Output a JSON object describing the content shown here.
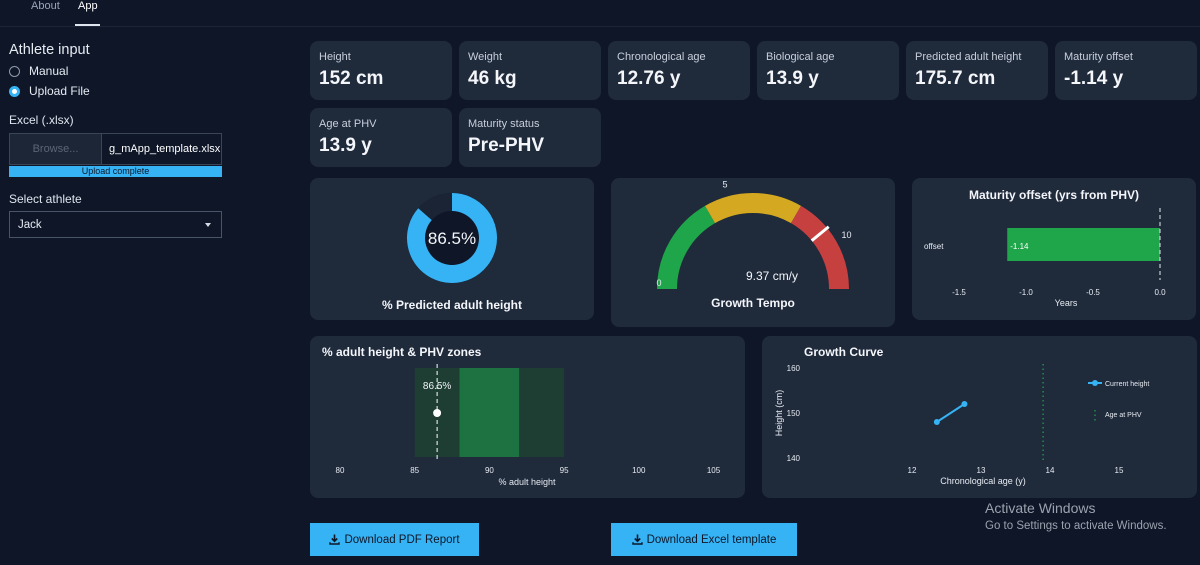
{
  "nav": {
    "tabs": [
      {
        "label": "About"
      },
      {
        "label": "App"
      }
    ]
  },
  "sidebar": {
    "title": "Athlete input",
    "mode_options": [
      "Manual",
      "Upload File"
    ],
    "selected_mode": "Upload File",
    "excel_label": "Excel (.xlsx)",
    "browse_label": "Browse...",
    "file_name": "g_mApp_template.xlsx",
    "upload_status": "Upload complete",
    "upload_progress_pct": 100,
    "select_label": "Select athlete",
    "selected_athlete": "Jack"
  },
  "metrics": [
    {
      "label": "Height",
      "value": "152 cm"
    },
    {
      "label": "Weight",
      "value": "46 kg"
    },
    {
      "label": "Chronological age",
      "value": "12.76 y"
    },
    {
      "label": "Biological age",
      "value": "13.9 y"
    },
    {
      "label": "Predicted adult height",
      "value": "175.7 cm"
    },
    {
      "label": "Maturity offset",
      "value": "-1.14 y"
    },
    {
      "label": "Age at PHV",
      "value": "13.9 y"
    },
    {
      "label": "Maturity status",
      "value": "Pre-PHV"
    }
  ],
  "colors": {
    "accent": "#36b3f4",
    "green": "#1fa54a",
    "yellow": "#d4a820",
    "red": "#c64040",
    "card": "#1f2a3b",
    "background": "#0e1628"
  },
  "chart_data": [
    {
      "type": "pie",
      "title": "% Predicted adult height",
      "center_label": "86.5%",
      "values": [
        86.5,
        13.5
      ]
    },
    {
      "type": "gauge",
      "title": "Growth Tempo",
      "value": 9.37,
      "value_label": "9.37 cm/y",
      "range": [
        0,
        12
      ],
      "tick_labels": [
        "0",
        "5",
        "10"
      ],
      "bands": [
        {
          "from": 0,
          "to": 4,
          "color": "#1fa54a"
        },
        {
          "from": 4,
          "to": 8,
          "color": "#d4a820"
        },
        {
          "from": 8,
          "to": 12,
          "color": "#c64040"
        }
      ]
    },
    {
      "type": "bar",
      "orientation": "horizontal",
      "title": "Maturity offset (yrs from PHV)",
      "categories": [
        "offset"
      ],
      "values": [
        -1.14
      ],
      "data_label": "-1.14",
      "xlabel": "Years",
      "xlim": [
        -1.5,
        0.0
      ],
      "xticks": [
        "-1.5",
        "-1.0",
        "-0.5",
        "0.0"
      ],
      "reference_line": 0
    },
    {
      "type": "scatter",
      "title": "% adult height & PHV zones",
      "xlabel": "% adult height",
      "xlim": [
        80,
        105
      ],
      "xticks": [
        "80",
        "85",
        "90",
        "95",
        "100",
        "105"
      ],
      "zones": [
        {
          "from": 85,
          "to": 88,
          "color": "#1e3d33"
        },
        {
          "from": 88,
          "to": 92,
          "color": "#1e7140"
        },
        {
          "from": 92,
          "to": 95,
          "color": "#1e3d33"
        }
      ],
      "value": 86.5,
      "value_label": "86.5%"
    },
    {
      "type": "line",
      "title": "Growth Curve",
      "xlabel": "Chronological age (y)",
      "ylabel": "Height (cm)",
      "xlim": [
        11.6,
        15
      ],
      "ylim": [
        138.5,
        161.5
      ],
      "xticks": [
        "12",
        "13",
        "14",
        "15"
      ],
      "yticks": [
        "140",
        "150",
        "160"
      ],
      "series": [
        {
          "name": "Current height",
          "x": [
            12.36,
            12.76
          ],
          "y": [
            148,
            152
          ]
        }
      ],
      "vline": {
        "name": "Age at PHV",
        "x": 13.9
      }
    }
  ],
  "downloads": {
    "pdf_label": "Download PDF Report",
    "excel_label": "Download Excel template"
  },
  "watermark": {
    "title": "Activate Windows",
    "subtitle": "Go to Settings to activate Windows."
  }
}
